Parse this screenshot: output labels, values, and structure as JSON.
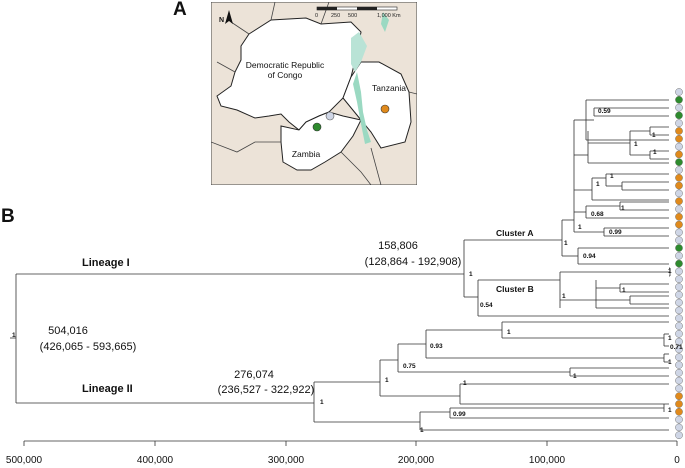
{
  "panels": {
    "a": "A",
    "b": "B"
  },
  "map": {
    "drc_label_line1": "Democratic Republic",
    "drc_label_line2": "of Congo",
    "tanzania_label": "Tanzania",
    "zambia_label": "Zambia",
    "scale_ticks": [
      "0",
      "250",
      "500",
      "1,000 Km"
    ],
    "north_arrow_letter": "N"
  },
  "tree": {
    "lineage_i": "Lineage I",
    "lineage_ii": "Lineage II",
    "cluster_a": "Cluster A",
    "cluster_b": "Cluster B",
    "root_age": "504,016",
    "root_hpd": "(426,065 - 593,665)",
    "lineage_i_age": "158,806",
    "lineage_i_hpd": "(128,864 - 192,908)",
    "lineage_ii_age": "276,074",
    "lineage_ii_hpd": "(236,527 - 322,922)",
    "support": {
      "root": "1",
      "lineage_i_node": "1",
      "cluster_a_node": "1",
      "cluster_b_node": "1",
      "ab_stem": "0.54",
      "a1": "0.59",
      "a2": "1",
      "a3": "1",
      "a4": "1",
      "a5": "1",
      "a6": "1",
      "a7": "0.68",
      "a8": "1",
      "a9": "1",
      "a10": "0.99",
      "a11": "0.94",
      "b1": "1",
      "b2": "1",
      "lineage_ii_node": "1",
      "l2a": "1",
      "l2b": "0.75",
      "l2c": "0.93",
      "l2d": "1",
      "l2e": "1",
      "l2f": "0.71",
      "l2g": "1",
      "l2h": "1",
      "l2i": "1",
      "l2j": "0.99",
      "l2k": "1"
    },
    "axis_ticks": [
      "500,000",
      "400,000",
      "300,000",
      "200,000",
      "100,000",
      "0"
    ],
    "tip_colors": [
      "grey",
      "green",
      "grey",
      "green",
      "grey",
      "orange",
      "orange",
      "grey",
      "orange",
      "green",
      "grey",
      "orange",
      "orange",
      "grey",
      "orange",
      "grey",
      "orange",
      "orange",
      "grey",
      "grey",
      "green",
      "grey",
      "green",
      "grey",
      "grey",
      "grey",
      "grey",
      "grey",
      "grey",
      "grey",
      "grey",
      "grey",
      "grey",
      "grey",
      "grey",
      "grey",
      "grey",
      "grey",
      "grey",
      "orange",
      "orange",
      "orange",
      "grey",
      "grey",
      "grey"
    ],
    "colors": {
      "grey": "#cfd6e6",
      "green": "#2e8b2e",
      "orange": "#e08a1c"
    }
  }
}
